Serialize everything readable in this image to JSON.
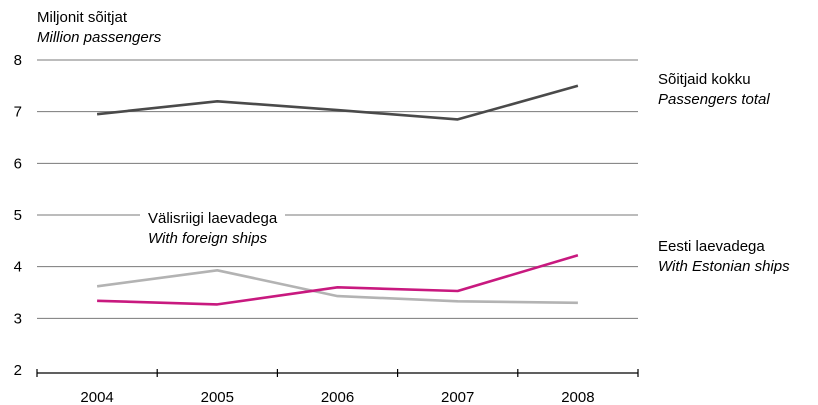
{
  "chart_data": {
    "type": "line",
    "ylabel_et": "Miljonit sõitjat",
    "ylabel_en": "Million passengers",
    "categories": [
      "2004",
      "2005",
      "2006",
      "2007",
      "2008"
    ],
    "ylim": [
      2,
      8
    ],
    "yticks": [
      2,
      3,
      4,
      5,
      6,
      7,
      8
    ],
    "grid": true,
    "series": [
      {
        "key": "total",
        "name_et": "Sõitjaid kokku",
        "name_en": "Passengers total",
        "color": "#4a4a4a",
        "values": [
          6.95,
          7.2,
          7.03,
          6.85,
          7.5
        ]
      },
      {
        "key": "foreign",
        "name_et": "Välisriigi laevadega",
        "name_en": "With foreign ships",
        "color": "#b3b3b3",
        "values": [
          3.62,
          3.93,
          3.43,
          3.33,
          3.3
        ]
      },
      {
        "key": "estonian",
        "name_et": "Eesti laevadega",
        "name_en": "With Estonian ships",
        "color": "#c8197f",
        "values": [
          3.34,
          3.27,
          3.6,
          3.53,
          4.22
        ]
      }
    ]
  }
}
